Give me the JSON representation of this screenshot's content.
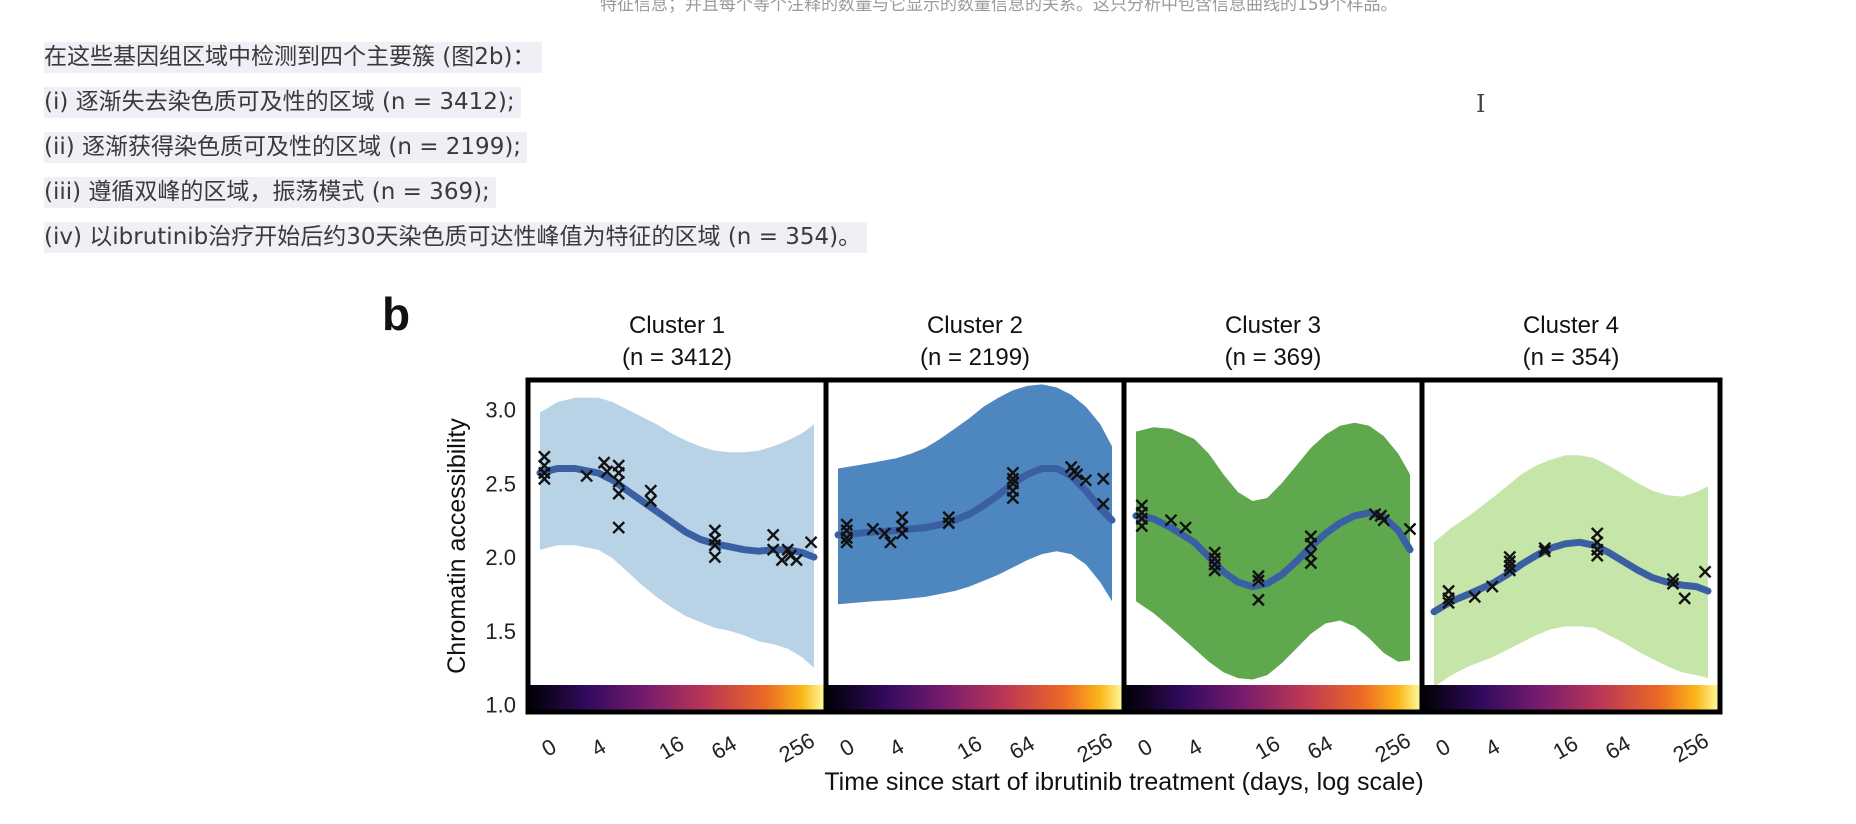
{
  "header": {
    "cutoff_text": "特征信息；并且每个等个注释的数量与它显示的数量信息的关系。这只分析中包含信息曲线的159个样品。"
  },
  "paragraph": {
    "intro": "在这些基因组区域中检测到四个主要簇 (图2b)：",
    "items": [
      "(i) 逐渐失去染色质可及性的区域 (n = 3412);",
      "(ii) 逐渐获得染色质可及性的区域 (n = 2199);",
      "(iii) 遵循双峰的区域，振荡模式 (n = 369);",
      "(iv) 以ibrutinib治疗开始后约30天染色质可达性峰值为特征的区域 (n = 354)。"
    ]
  },
  "cursor_glyph": "I",
  "figure": {
    "panel_letter": "b"
  },
  "chart_data": {
    "type": "line",
    "ylabel": "Chromatin accessibility",
    "xlabel": "Time since start of ibrutinib treatment (days, log scale)",
    "ylim": [
      0.95,
      3.2
    ],
    "yticks": [
      "3.0",
      "2.5",
      "2.0",
      "1.5",
      "1.0"
    ],
    "xticks": [
      "0",
      "4",
      "16",
      "64",
      "256"
    ],
    "panels": [
      {
        "title": "Cluster 1",
        "n_label": "(n = 3412)",
        "color": "#b8d2e6",
        "line_x": [
          0,
          0.6,
          1.2,
          2,
          2.5,
          3,
          3.5,
          4,
          4.5,
          5,
          5.5,
          6,
          6.5,
          7,
          7.5,
          8,
          8.5,
          9,
          9.4
        ],
        "line_y": [
          2.57,
          2.6,
          2.6,
          2.57,
          2.52,
          2.45,
          2.38,
          2.31,
          2.24,
          2.17,
          2.12,
          2.09,
          2.07,
          2.05,
          2.04,
          2.05,
          2.05,
          2.03,
          2.0
        ],
        "upper": [
          2.98,
          3.05,
          3.08,
          3.08,
          3.05,
          3.0,
          2.95,
          2.9,
          2.84,
          2.79,
          2.75,
          2.72,
          2.71,
          2.71,
          2.72,
          2.75,
          2.79,
          2.84,
          2.9
        ],
        "lower": [
          2.05,
          2.08,
          2.08,
          2.05,
          1.99,
          1.9,
          1.81,
          1.73,
          1.66,
          1.6,
          1.56,
          1.52,
          1.5,
          1.47,
          1.43,
          1.41,
          1.38,
          1.32,
          1.25
        ],
        "points": [
          [
            0.15,
            2.68
          ],
          [
            0.15,
            2.62
          ],
          [
            0.15,
            2.57
          ],
          [
            0.15,
            2.53
          ],
          [
            1.6,
            2.55
          ],
          [
            2.2,
            2.64
          ],
          [
            2.3,
            2.58
          ],
          [
            2.7,
            2.62
          ],
          [
            2.7,
            2.57
          ],
          [
            2.7,
            2.51
          ],
          [
            2.7,
            2.43
          ],
          [
            2.7,
            2.2
          ],
          [
            3.8,
            2.45
          ],
          [
            3.8,
            2.38
          ],
          [
            6.0,
            2.18
          ],
          [
            6.0,
            2.12
          ],
          [
            6.0,
            2.08
          ],
          [
            6.0,
            2.0
          ],
          [
            8.0,
            2.15
          ],
          [
            8.0,
            2.05
          ],
          [
            8.3,
            1.98
          ],
          [
            8.5,
            2.05
          ],
          [
            8.6,
            2.01
          ],
          [
            8.8,
            1.98
          ],
          [
            9.3,
            2.1
          ]
        ]
      },
      {
        "title": "Cluster 2",
        "n_label": "(n = 2199)",
        "color": "#4e86c0",
        "line_x": [
          0,
          0.6,
          1.2,
          2,
          2.5,
          3,
          3.5,
          4,
          4.5,
          5,
          5.5,
          6,
          6.5,
          7,
          7.5,
          8,
          8.5,
          9,
          9.4
        ],
        "line_y": [
          2.15,
          2.16,
          2.17,
          2.18,
          2.19,
          2.2,
          2.22,
          2.25,
          2.29,
          2.35,
          2.42,
          2.5,
          2.56,
          2.6,
          2.6,
          2.55,
          2.45,
          2.33,
          2.25
        ],
        "upper": [
          2.6,
          2.62,
          2.64,
          2.67,
          2.7,
          2.74,
          2.8,
          2.87,
          2.94,
          3.02,
          3.08,
          3.13,
          3.16,
          3.17,
          3.15,
          3.1,
          3.02,
          2.9,
          2.75
        ],
        "lower": [
          1.68,
          1.69,
          1.7,
          1.71,
          1.72,
          1.73,
          1.75,
          1.77,
          1.8,
          1.84,
          1.88,
          1.93,
          1.98,
          2.02,
          2.04,
          2.02,
          1.95,
          1.83,
          1.7
        ],
        "points": [
          [
            0.3,
            2.22
          ],
          [
            0.3,
            2.18
          ],
          [
            0.3,
            2.13
          ],
          [
            0.3,
            2.1
          ],
          [
            1.2,
            2.19
          ],
          [
            1.6,
            2.16
          ],
          [
            1.8,
            2.1
          ],
          [
            2.2,
            2.27
          ],
          [
            2.2,
            2.21
          ],
          [
            2.2,
            2.16
          ],
          [
            3.8,
            2.27
          ],
          [
            3.8,
            2.23
          ],
          [
            6.0,
            2.57
          ],
          [
            6.0,
            2.53
          ],
          [
            6.0,
            2.5
          ],
          [
            6.0,
            2.45
          ],
          [
            6.0,
            2.4
          ],
          [
            8.0,
            2.61
          ],
          [
            8.1,
            2.58
          ],
          [
            8.2,
            2.56
          ],
          [
            8.5,
            2.52
          ],
          [
            9.1,
            2.53
          ],
          [
            9.1,
            2.36
          ]
        ]
      },
      {
        "title": "Cluster 3",
        "n_label": "(n = 369)",
        "color": "#5fa84e",
        "line_x": [
          0,
          0.6,
          1.2,
          2,
          2.5,
          3,
          3.5,
          4,
          4.5,
          5,
          5.5,
          6,
          6.5,
          7,
          7.5,
          8,
          8.5,
          9,
          9.4
        ],
        "line_y": [
          2.28,
          2.26,
          2.2,
          2.1,
          2.0,
          1.9,
          1.83,
          1.8,
          1.82,
          1.88,
          1.97,
          2.07,
          2.16,
          2.23,
          2.28,
          2.3,
          2.27,
          2.18,
          2.05
        ],
        "upper": [
          2.85,
          2.88,
          2.87,
          2.8,
          2.7,
          2.56,
          2.44,
          2.38,
          2.4,
          2.5,
          2.62,
          2.74,
          2.83,
          2.89,
          2.91,
          2.89,
          2.82,
          2.7,
          2.56
        ],
        "lower": [
          1.7,
          1.62,
          1.52,
          1.38,
          1.29,
          1.22,
          1.18,
          1.17,
          1.2,
          1.28,
          1.38,
          1.48,
          1.55,
          1.57,
          1.53,
          1.45,
          1.35,
          1.29,
          1.3
        ],
        "points": [
          [
            0.2,
            2.35
          ],
          [
            0.2,
            2.3
          ],
          [
            0.2,
            2.26
          ],
          [
            0.2,
            2.21
          ],
          [
            1.2,
            2.25
          ],
          [
            1.7,
            2.2
          ],
          [
            2.7,
            2.03
          ],
          [
            2.7,
            1.99
          ],
          [
            2.7,
            1.95
          ],
          [
            2.7,
            1.91
          ],
          [
            4.2,
            1.87
          ],
          [
            4.2,
            1.84
          ],
          [
            4.2,
            1.71
          ],
          [
            6.0,
            2.14
          ],
          [
            6.0,
            2.09
          ],
          [
            6.0,
            2.02
          ],
          [
            6.0,
            1.96
          ],
          [
            8.2,
            2.29
          ],
          [
            8.4,
            2.28
          ],
          [
            8.5,
            2.25
          ],
          [
            9.4,
            2.19
          ]
        ]
      },
      {
        "title": "Cluster 4",
        "n_label": "(n = 354)",
        "color": "#c6e5a8",
        "line_x": [
          0,
          0.6,
          1.2,
          2,
          2.5,
          3,
          3.5,
          4,
          4.5,
          5,
          5.5,
          6,
          6.5,
          7,
          7.5,
          8,
          8.5,
          9,
          9.4
        ],
        "line_y": [
          1.63,
          1.7,
          1.75,
          1.82,
          1.88,
          1.95,
          2.01,
          2.06,
          2.09,
          2.1,
          2.08,
          2.03,
          1.97,
          1.91,
          1.86,
          1.83,
          1.81,
          1.8,
          1.77
        ],
        "upper": [
          2.1,
          2.2,
          2.28,
          2.4,
          2.48,
          2.56,
          2.62,
          2.66,
          2.69,
          2.69,
          2.67,
          2.62,
          2.56,
          2.5,
          2.45,
          2.42,
          2.41,
          2.44,
          2.48
        ],
        "lower": [
          1.12,
          1.2,
          1.26,
          1.32,
          1.37,
          1.42,
          1.47,
          1.51,
          1.53,
          1.53,
          1.52,
          1.47,
          1.42,
          1.36,
          1.31,
          1.26,
          1.22,
          1.2,
          1.18
        ],
        "points": [
          [
            0.5,
            1.77
          ],
          [
            0.5,
            1.72
          ],
          [
            0.5,
            1.69
          ],
          [
            1.4,
            1.73
          ],
          [
            2.0,
            1.8
          ],
          [
            2.6,
            2.0
          ],
          [
            2.6,
            1.97
          ],
          [
            2.6,
            1.94
          ],
          [
            2.6,
            1.91
          ],
          [
            3.8,
            2.06
          ],
          [
            3.8,
            2.04
          ],
          [
            5.6,
            2.16
          ],
          [
            5.6,
            2.1
          ],
          [
            5.6,
            2.05
          ],
          [
            5.6,
            2.01
          ],
          [
            8.2,
            1.85
          ],
          [
            8.2,
            1.82
          ],
          [
            8.6,
            1.72
          ],
          [
            9.3,
            1.9
          ]
        ]
      }
    ]
  }
}
